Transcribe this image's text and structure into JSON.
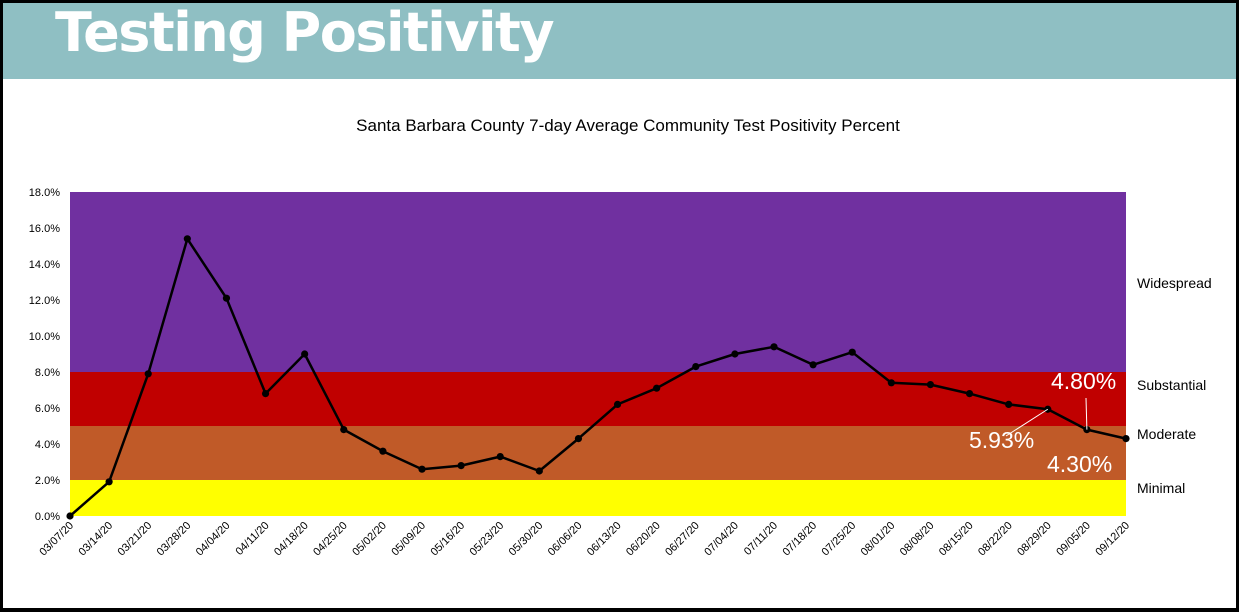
{
  "header": {
    "title": "Testing Positivity"
  },
  "chart_data": {
    "type": "line",
    "title": "Santa Barbara County 7-day Average Community Test Positivity Percent",
    "xlabel": "",
    "ylabel": "",
    "ylim": [
      0,
      18
    ],
    "y_ticks": [
      "0.0%",
      "2.0%",
      "4.0%",
      "6.0%",
      "8.0%",
      "10.0%",
      "12.0%",
      "14.0%",
      "16.0%",
      "18.0%"
    ],
    "categories": [
      "03/07/20",
      "03/14/20",
      "03/21/20",
      "03/28/20",
      "04/04/20",
      "04/11/20",
      "04/18/20",
      "04/25/20",
      "05/02/20",
      "05/09/20",
      "05/16/20",
      "05/23/20",
      "05/30/20",
      "06/06/20",
      "06/13/20",
      "06/20/20",
      "06/27/20",
      "07/04/20",
      "07/11/20",
      "07/18/20",
      "07/25/20",
      "08/01/20",
      "08/08/20",
      "08/15/20",
      "08/22/20",
      "08/29/20",
      "09/05/20",
      "09/12/20"
    ],
    "series": [
      {
        "name": "7-day Average Community Test Positivity Percent",
        "color": "#000000",
        "values": [
          0.0,
          1.9,
          7.9,
          15.4,
          12.1,
          6.8,
          9.0,
          4.8,
          3.6,
          2.6,
          2.8,
          3.3,
          2.5,
          4.3,
          6.2,
          7.1,
          8.3,
          9.0,
          9.4,
          8.4,
          9.1,
          7.4,
          7.3,
          6.8,
          6.2,
          5.93,
          4.8,
          4.3
        ]
      }
    ],
    "zones": [
      {
        "name": "Minimal",
        "from": 0,
        "to": 2,
        "color": "#ffff00"
      },
      {
        "name": "Moderate",
        "from": 2,
        "to": 5,
        "color": "#c05a28"
      },
      {
        "name": "Substantial",
        "from": 5,
        "to": 8,
        "color": "#c00000"
      },
      {
        "name": "Widespread",
        "from": 8,
        "to": 18,
        "color": "#7030a0"
      }
    ],
    "annotations": [
      {
        "text": "4.80%",
        "index": 26
      },
      {
        "text": "5.93%",
        "index": 25
      },
      {
        "text": "4.30%",
        "index": 27
      }
    ]
  }
}
